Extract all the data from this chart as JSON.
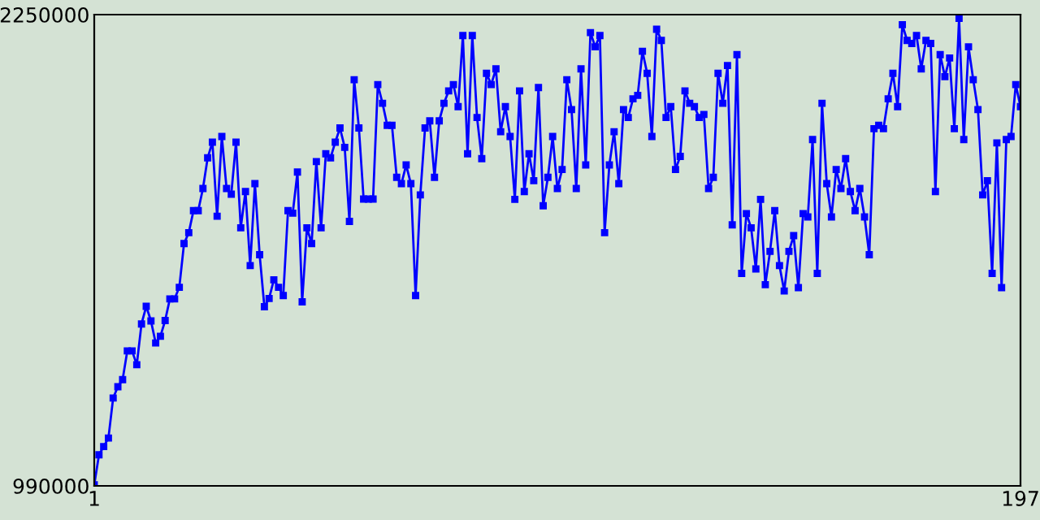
{
  "chart_data": {
    "type": "line",
    "marker": "square",
    "line_style": "solid",
    "grid": false,
    "legend": false,
    "x": [
      1,
      2,
      3,
      4,
      5,
      6,
      7,
      8,
      9,
      10,
      11,
      12,
      13,
      14,
      15,
      16,
      17,
      18,
      19,
      20,
      21,
      22,
      23,
      24,
      25,
      26,
      27,
      28,
      29,
      30,
      31,
      32,
      33,
      34,
      35,
      36,
      37,
      38,
      39,
      40,
      41,
      42,
      43,
      44,
      45,
      46,
      47,
      48,
      49,
      50,
      51,
      52,
      53,
      54,
      55,
      56,
      57,
      58,
      59,
      60,
      61,
      62,
      63,
      64,
      65,
      66,
      67,
      68,
      69,
      70,
      71,
      72,
      73,
      74,
      75,
      76,
      77,
      78,
      79,
      80,
      81,
      82,
      83,
      84,
      85,
      86,
      87,
      88,
      89,
      90,
      91,
      92,
      93,
      94,
      95,
      96,
      97,
      98,
      99,
      100,
      101,
      102,
      103,
      104,
      105,
      106,
      107,
      108,
      109,
      110,
      111,
      112,
      113,
      114,
      115,
      116,
      117,
      118,
      119,
      120,
      121,
      122,
      123,
      124,
      125,
      126,
      127,
      128,
      129,
      130,
      131,
      132,
      133,
      134,
      135,
      136,
      137,
      138,
      139,
      140,
      141,
      142,
      143,
      144,
      145,
      146,
      147,
      148,
      149,
      150,
      151,
      152,
      153,
      154,
      155,
      156,
      157,
      158,
      159,
      160,
      161,
      162,
      163,
      164,
      165,
      166,
      167,
      168,
      169,
      170,
      171,
      172,
      173,
      174,
      175,
      176,
      177,
      178,
      179,
      180,
      181,
      182,
      183,
      184,
      185,
      186,
      187,
      188,
      189,
      190,
      191,
      192,
      193,
      194,
      195,
      196,
      197
    ],
    "series": [
      {
        "color": "#0000ff",
        "values": [
          993000,
          1073000,
          1095000,
          1118000,
          1225000,
          1255000,
          1274000,
          1351000,
          1351000,
          1314000,
          1423000,
          1470000,
          1431000,
          1372000,
          1390000,
          1432000,
          1490000,
          1490000,
          1521000,
          1638000,
          1667000,
          1726000,
          1726000,
          1785000,
          1867000,
          1909000,
          1711000,
          1924000,
          1785000,
          1770000,
          1909000,
          1680000,
          1777000,
          1579000,
          1798000,
          1608000,
          1469000,
          1491000,
          1541000,
          1521000,
          1499000,
          1726000,
          1719000,
          1829000,
          1482000,
          1680000,
          1638000,
          1857000,
          1680000,
          1878000,
          1867000,
          1909000,
          1947000,
          1895000,
          1697000,
          2076000,
          1947000,
          1757000,
          1757000,
          1757000,
          2063000,
          2013000,
          1954000,
          1954000,
          1815000,
          1798000,
          1848000,
          1798000,
          1499000,
          1768000,
          1947000,
          1966000,
          1815000,
          1966000,
          2013000,
          2046000,
          2063000,
          2004000,
          2194000,
          1878000,
          2194000,
          1975000,
          1865000,
          2093000,
          2063000,
          2105000,
          1937000,
          2004000,
          1924000,
          1756000,
          2046000,
          1777000,
          1878000,
          1806000,
          2055000,
          1739000,
          1815000,
          1924000,
          1785000,
          1836000,
          2076000,
          1996000,
          1785000,
          2105000,
          1848000,
          2202000,
          2164000,
          2194000,
          1667000,
          1848000,
          1937000,
          1798000,
          1996000,
          1975000,
          2025000,
          2034000,
          2152000,
          2093000,
          1924000,
          2211000,
          2181000,
          1975000,
          2004000,
          1836000,
          1871000,
          2046000,
          2013000,
          2004000,
          1975000,
          1983000,
          1785000,
          1815000,
          2093000,
          2013000,
          2114000,
          1688000,
          2143000,
          1558000,
          1718000,
          1680000,
          1570000,
          1756000,
          1528000,
          1617000,
          1726000,
          1579000,
          1511000,
          1617000,
          1659000,
          1520000,
          1718000,
          1709000,
          1916000,
          1558000,
          2013000,
          1798000,
          1709000,
          1836000,
          1785000,
          1865000,
          1777000,
          1726000,
          1785000,
          1709000,
          1608000,
          1945000,
          1954000,
          1945000,
          2025000,
          2093000,
          2004000,
          2223000,
          2181000,
          2173000,
          2194000,
          2105000,
          2181000,
          2173000,
          1777000,
          2143000,
          2084000,
          2134000,
          1945000,
          2240000,
          1916000,
          2164000,
          2076000,
          1996000,
          1768000,
          1806000,
          1558000,
          1907000,
          1520000,
          1916000,
          1924000,
          2063000,
          2004000
        ]
      }
    ],
    "xlim": [
      1,
      197
    ],
    "xticks": [
      1,
      197
    ],
    "ylim": [
      990000,
      2250000
    ],
    "yticks": [
      990000,
      2250000
    ]
  }
}
